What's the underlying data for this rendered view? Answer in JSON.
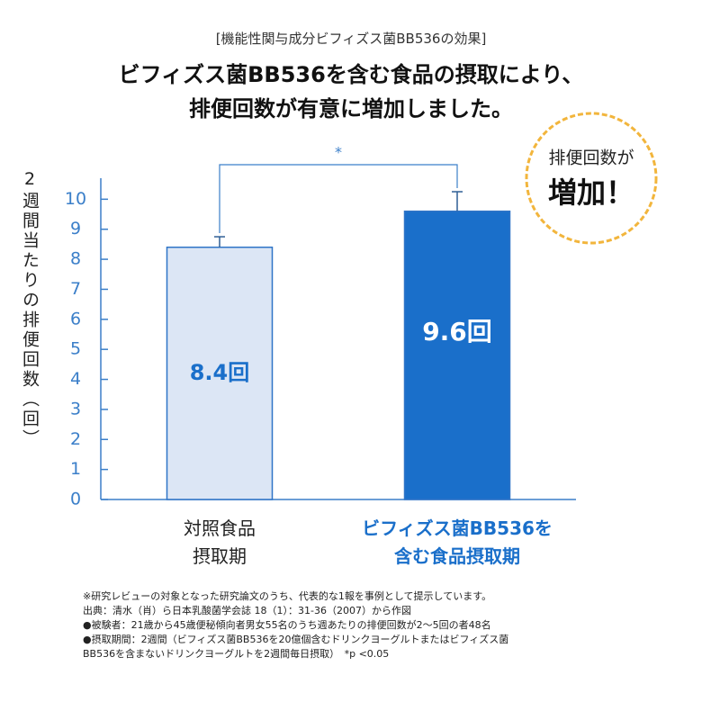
{
  "chart_data": {
    "type": "bar",
    "supertitle": "[機能性関与成分ビフィズス菌BB536の効果]",
    "title": "ビフィズス菌BB536を含む食品の摂取により、\n排便回数が有意に増加しました。",
    "y_label": "2週間当たりの排便回数（回）",
    "categories": [
      "対照食品\n摂取期",
      "ビフィズス菌BB536を\n含む食品摂取期"
    ],
    "category_label_colors": [
      "#222222",
      "#1a6fca"
    ],
    "values": [
      8.4,
      9.6
    ],
    "value_labels": [
      "8.4回",
      "9.6回"
    ],
    "value_label_colors": [
      "#1a6fca",
      "#ffffff"
    ],
    "errors": [
      0.35,
      0.65
    ],
    "colors": [
      "#dce6f5",
      "#1a6fca"
    ],
    "edge_color": "#2f74c7",
    "ylim": [
      0,
      10.7
    ],
    "yticks": [
      0,
      1,
      2,
      3,
      4,
      5,
      6,
      7,
      8,
      9,
      10
    ],
    "significance": "*",
    "badge": [
      "排便回数が",
      "増加！"
    ],
    "notes": [
      "※研究レビューの対象となった研究論文のうち、代表的な1報を事例として提示しています。",
      "出典：清水（肖）ら日本乳酸菌学会誌 18（1）：31-36（2007）から作図",
      "●被験者：21歳から45歳便秘傾向者男女55名のうち週あたりの排便回数が2〜5回の者48名",
      "●摂取期間：2週間（ビフィズス菌BB536を20億個含むドリンクヨーグルトまたはビフィズス菌",
      "BB536を含まないドリンクヨーグルトを2週間毎日摂取）　*p <0.05"
    ]
  }
}
